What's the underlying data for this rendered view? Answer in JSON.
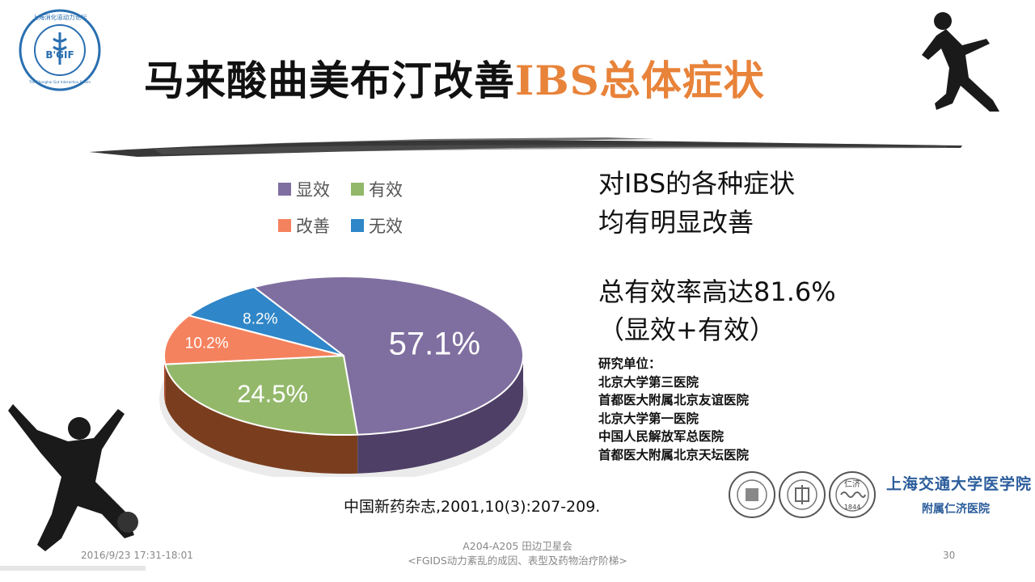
{
  "title": {
    "main": "马来酸曲美布汀改善",
    "highlight": "IBS总体症状"
  },
  "logo": {
    "text": "上海消化道动力论坛",
    "center": "B'GIF",
    "sub": "The Shanghai Gut Interaction Forum"
  },
  "side_text": {
    "line1": "对IBS的各种症状",
    "line2": "均有明显改善",
    "line3": "总有效率高达81.6%",
    "line4": "（显效+有效）"
  },
  "research": {
    "heading": "研究单位：",
    "units": [
      "北京大学第三医院",
      "首都医大附属北京友谊医院",
      "北京大学第一医院",
      "中国人民解放军总医院",
      "首都医大附属北京天坛医院"
    ]
  },
  "citation": "中国新药杂志,2001,10(3):207-209.",
  "footer": {
    "date": "2016/9/23  17:31-18:01",
    "center_line1": "A204-A205 田边卫星会",
    "center_line2": "<FGIDS动力紊乱的成因、表型及药物治疗阶梯>",
    "page": "30"
  },
  "institution": {
    "name": "上海交通大学医学院",
    "sub": "附属仁济医院",
    "seal_text": "仁济",
    "seal_year": "1844"
  },
  "colors": {
    "accent": "#e8833a",
    "purple": "#7f6fa0",
    "green": "#93b86a",
    "orange": "#f5825e",
    "blue": "#2f86c8",
    "brand": "#2a5c9b"
  },
  "chart_data": {
    "type": "pie",
    "labels": [
      "显效",
      "有效",
      "改善",
      "无效"
    ],
    "values": [
      57.1,
      24.5,
      10.2,
      8.2
    ],
    "data_labels": [
      "57.1%",
      "24.5%",
      "10.2%",
      "8.2%"
    ],
    "colors": [
      "#7f6fa0",
      "#93b86a",
      "#f5825e",
      "#2f86c8"
    ],
    "legend_position": "top"
  }
}
